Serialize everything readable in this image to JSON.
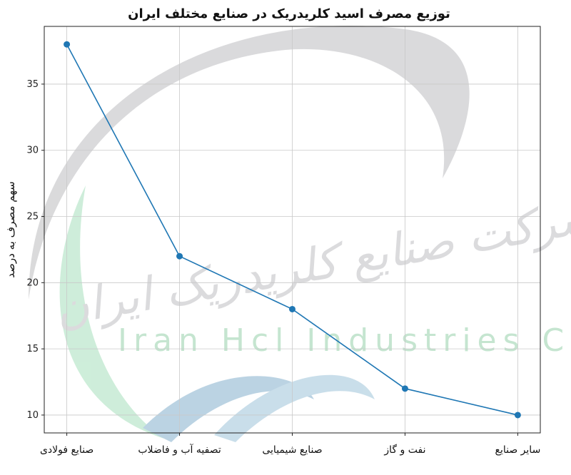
{
  "chart_data": {
    "type": "line",
    "title": "توزیع مصرف اسید کلریدریک در صنایع مختلف ایران",
    "xlabel": "",
    "ylabel": "سهم مصرف به درصد",
    "categories": [
      "صنایع فولادی",
      "تصفیه آب و فاضلاب",
      "صنایع شیمیایی",
      "نفت و گاز",
      "سایر صنایع"
    ],
    "values": [
      38,
      22,
      18,
      12,
      10
    ],
    "yticks": [
      10,
      15,
      20,
      25,
      30,
      35
    ],
    "ylim": [
      8.65,
      39.36
    ],
    "grid": true,
    "line_color": "#1f77b4"
  },
  "watermark": {
    "persian_text": "شرکت صنایع کلریدریک ایران",
    "latin_text": "Iran Hcl Industries Co"
  }
}
